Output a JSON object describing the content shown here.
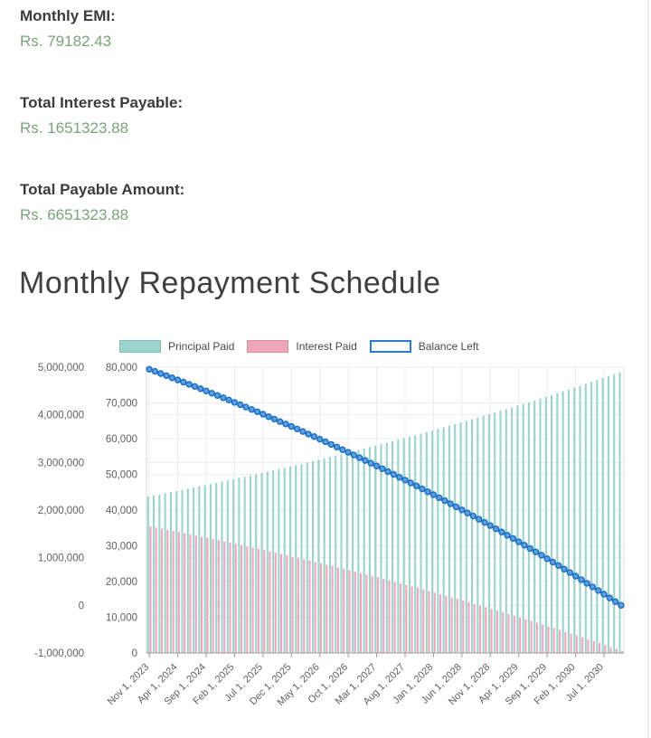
{
  "summary": {
    "monthly_emi_label": "Monthly EMI:",
    "monthly_emi_value": "Rs. 79182.43",
    "total_interest_label": "Total Interest Payable:",
    "total_interest_value": "Rs. 1651323.88",
    "total_payable_label": "Total Payable Amount:",
    "total_payable_value": "Rs. 6651323.88"
  },
  "section_title": "Monthly Repayment Schedule",
  "colors": {
    "value_green": "#7ba37b",
    "label_dark": "#3b3b3b",
    "axis_text": "#5f5f5f",
    "grid": "#ececec",
    "axis_line": "#9e9e9e",
    "principal_teal": "#9bd4cd",
    "interest_pink": "#efa5ba",
    "balance_blue": "#2b7dd1",
    "marker_fill": "#58a0e2",
    "marker_stroke": "#1d6cc0"
  },
  "chart_data": {
    "type": "combo-bar-line",
    "legend_position": "top",
    "n_points": 84,
    "x_tick_step": 5,
    "x_tick_labels": [
      "Nov 1, 2023",
      "Apr 1, 2024",
      "Sep 1, 2024",
      "Feb 1, 2025",
      "Jul 1, 2025",
      "Dec 1, 2025",
      "May 1, 2026",
      "Oct 1, 2026",
      "Mar 1, 2027",
      "Aug 1, 2027",
      "Jan 1, 2028",
      "Jun 1, 2028",
      "Nov 1, 2028",
      "Apr 1, 2029",
      "Sep 1, 2029",
      "Feb 1, 2030",
      "Jul 1, 2030"
    ],
    "axes": {
      "outer": {
        "min": -1000000,
        "max": 5000000,
        "interval": 1000000,
        "ticks": [
          "5,000,000",
          "4,000,000",
          "3,000,000",
          "2,000,000",
          "1,000,000",
          "0",
          "-1,000,000"
        ]
      },
      "inner": {
        "min": 0,
        "max": 80000,
        "interval": 10000,
        "ticks": [
          "80,000",
          "70,000",
          "60,000",
          "50,000",
          "40,000",
          "30,000",
          "20,000",
          "10,000",
          "0"
        ]
      }
    },
    "series": [
      {
        "name": "Principal Paid",
        "type": "bar",
        "axis": "inner",
        "color": "#9bd4cd",
        "values": [
          43766,
          44076,
          44388,
          44702,
          45019,
          45338,
          45659,
          45983,
          46308,
          46636,
          46966,
          47299,
          47634,
          47972,
          48311,
          48654,
          48998,
          49345,
          49695,
          50047,
          50401,
          50758,
          51118,
          51480,
          51844,
          52212,
          52581,
          52954,
          53329,
          53707,
          54087,
          54470,
          54856,
          55244,
          55636,
          56030,
          56426,
          56826,
          57228,
          57634,
          58042,
          58453,
          58867,
          59284,
          59704,
          60127,
          60553,
          60982,
          61414,
          61849,
          62287,
          62728,
          63172,
          63620,
          64070,
          64524,
          64981,
          65442,
          65906,
          66373,
          66843,
          67317,
          67793,
          68274,
          68757,
          69244,
          69735,
          70229,
          70726,
          71227,
          71731,
          72240,
          72751,
          73267,
          73786,
          74308,
          74835,
          75365,
          75899,
          76436,
          76978,
          77523,
          78072,
          78625
        ]
      },
      {
        "name": "Interest Paid",
        "type": "bar",
        "axis": "inner",
        "color": "#efa5ba",
        "values": [
          35417,
          35107,
          34794,
          34480,
          34163,
          33845,
          33523,
          33200,
          32874,
          32546,
          32216,
          31883,
          31548,
          31211,
          30871,
          30529,
          30184,
          29837,
          29488,
          29136,
          28781,
          28424,
          28065,
          27703,
          27338,
          26971,
          26601,
          26229,
          25854,
          25476,
          25096,
          24712,
          24327,
          23938,
          23547,
          23153,
          22756,
          22356,
          21954,
          21549,
          21140,
          20729,
          20315,
          19898,
          19479,
          19056,
          18630,
          18201,
          17769,
          17334,
          16896,
          16455,
          16010,
          15563,
          15112,
          14658,
          14201,
          13741,
          13276,
          12809,
          12339,
          11866,
          11389,
          10909,
          10425,
          9938,
          9448,
          8954,
          8456,
          7955,
          7451,
          6943,
          6431,
          5916,
          5397,
          4874,
          4348,
          3818,
          3284,
          2746,
          2205,
          1659,
          1110,
          557
        ]
      },
      {
        "name": "Balance Left",
        "type": "line",
        "axis": "outer",
        "color": "#2b7dd1",
        "values": [
          4956234,
          4912158,
          4867770,
          4823068,
          4778049,
          4732711,
          4687052,
          4641069,
          4594761,
          4548125,
          4501159,
          4453860,
          4406226,
          4358254,
          4309943,
          4261289,
          4212291,
          4162946,
          4113251,
          4063204,
          4012803,
          3962045,
          3910927,
          3859447,
          3807603,
          3755391,
          3702810,
          3649856,
          3596527,
          3542820,
          3488733,
          3434263,
          3379407,
          3324163,
          3268527,
          3212497,
          3156071,
          3099245,
          3042017,
          2984383,
          2926341,
          2867888,
          2809021,
          2749737,
          2690033,
          2629906,
          2569353,
          2508371,
          2446957,
          2385108,
          2322821,
          2260093,
          2196921,
          2133301,
          2069231,
          2004707,
          1939726,
          1874284,
          1808378,
          1742005,
          1675162,
          1607845,
          1540052,
          1471778,
          1403021,
          1333777,
          1264042,
          1193813,
          1123087,
          1051860,
          980129,
          907889,
          835138,
          761871,
          688085,
          613777,
          538942,
          463577,
          387678,
          311242,
          234264,
          156741,
          78669,
          44
        ]
      }
    ]
  }
}
